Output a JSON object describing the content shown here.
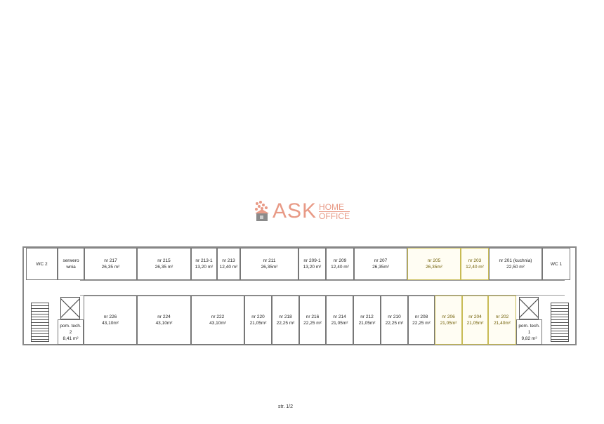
{
  "logo": {
    "text": "ASK",
    "sub1": "HOME",
    "sub2": "OFFICE",
    "color": "#e89a86"
  },
  "highlight_color": "#c8bb55",
  "top_rooms": [
    {
      "name": "WC 2",
      "area": ""
    },
    {
      "name": "serwero wnia",
      "area": ""
    },
    {
      "name": "nr 217",
      "area": "26,35 m²"
    },
    {
      "name": "nr 215",
      "area": "26,35 m²"
    },
    {
      "name": "nr 213-1",
      "area": "13,20 m²"
    },
    {
      "name": "nr 213",
      "area": "12,40 m²"
    },
    {
      "name": "nr 211",
      "area": "26,35m²"
    },
    {
      "name": "nr 209-1",
      "area": "13,20 m²"
    },
    {
      "name": "nr 209",
      "area": "12,40 m²"
    },
    {
      "name": "nr 207",
      "area": "26,35m²"
    },
    {
      "name": "nr 205",
      "area": "26,35m²",
      "highlighted": true
    },
    {
      "name": "nr 203",
      "area": "12,40 m²",
      "highlighted": true
    },
    {
      "name": "nr 201 (kuchnia)",
      "area": "22,50 m²"
    },
    {
      "name": "WC 1",
      "area": ""
    }
  ],
  "bottom_rooms": [
    {
      "name": "pom. tech. 2",
      "area": "8,41 m²"
    },
    {
      "name": "nr 226",
      "area": "43,10m²"
    },
    {
      "name": "nr 224",
      "area": "43,10m²"
    },
    {
      "name": "nr 222",
      "area": "43,10m²"
    },
    {
      "name": "nr 220",
      "area": "21,05m²"
    },
    {
      "name": "nr 218",
      "area": "22,25 m²"
    },
    {
      "name": "nr 216",
      "area": "22,25 m²"
    },
    {
      "name": "nr 214",
      "area": "21,05m²"
    },
    {
      "name": "nr 212",
      "area": "21,05m²"
    },
    {
      "name": "nr 210",
      "area": "22,25 m²"
    },
    {
      "name": "nr 208",
      "area": "22,25 m²"
    },
    {
      "name": "nr 206",
      "area": "21,05m²",
      "highlighted": true
    },
    {
      "name": "nr 204",
      "area": "21,05m²",
      "highlighted": true
    },
    {
      "name": "nr 202",
      "area": "21,40m²",
      "highlighted": true
    },
    {
      "name": "pom. tech. 1",
      "area": "9,82 m²"
    }
  ],
  "footer": "str. 1/2"
}
